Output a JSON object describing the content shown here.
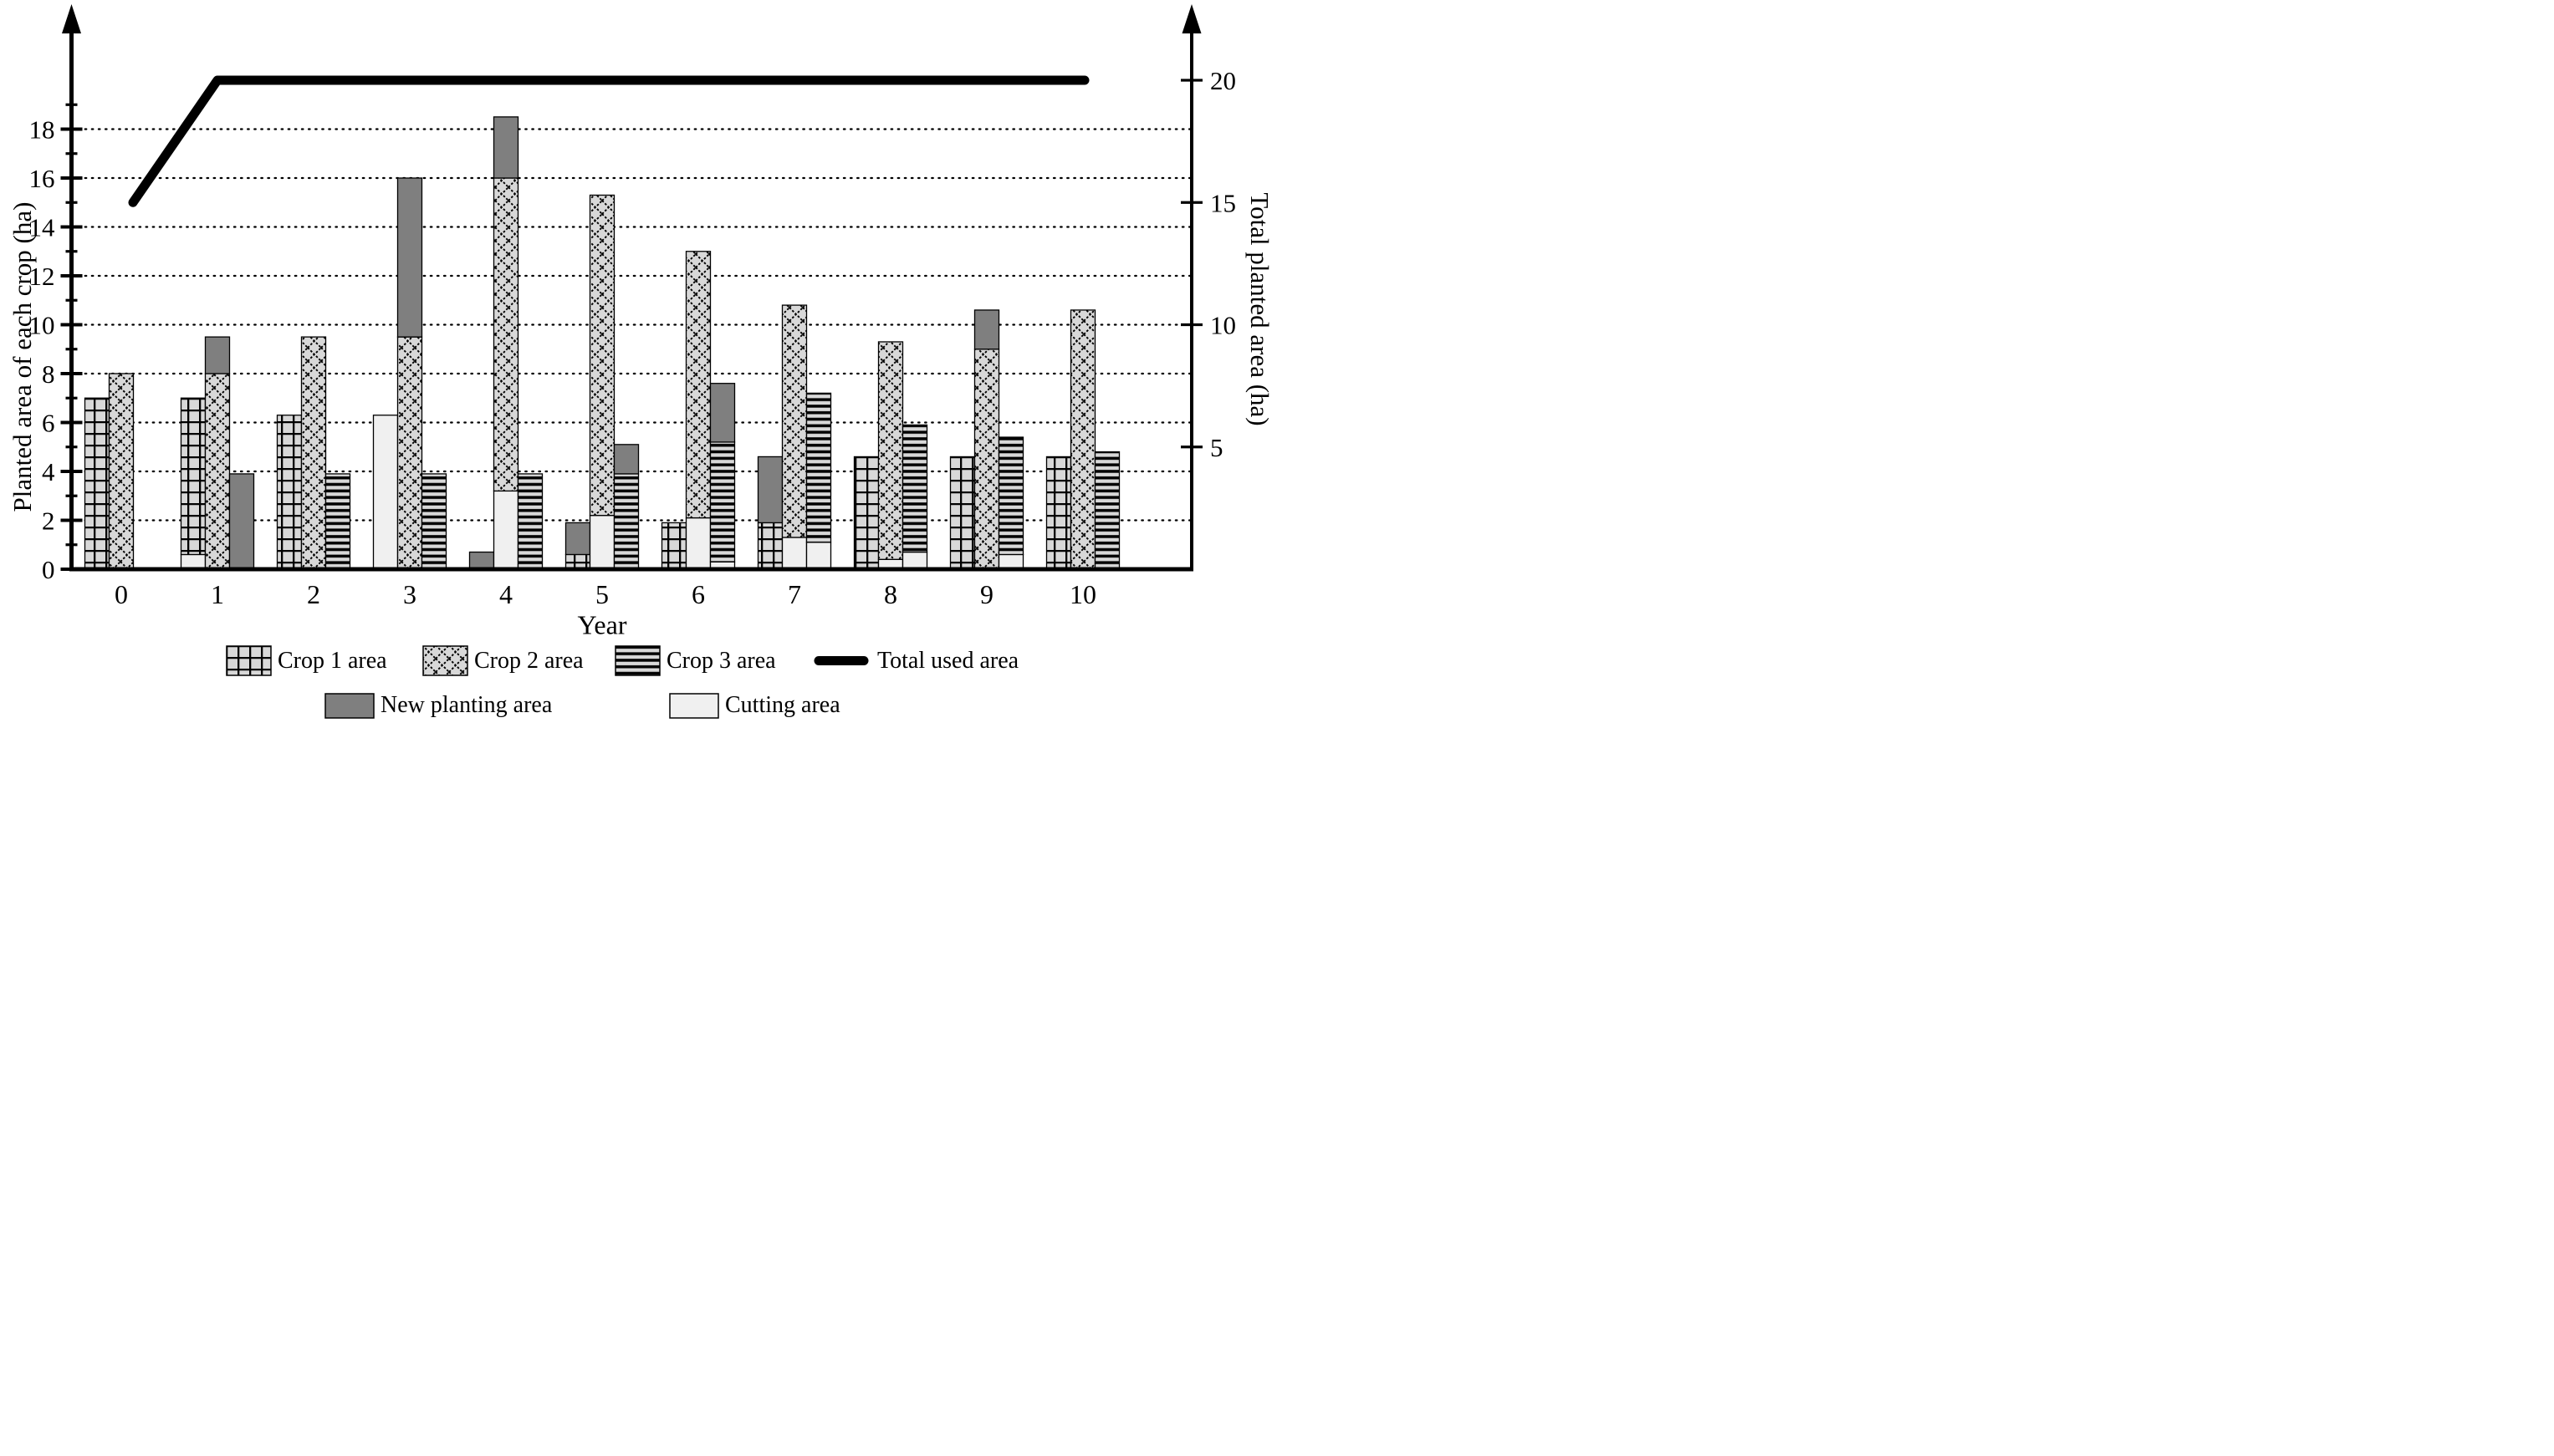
{
  "chart_data": {
    "type": "bar",
    "x_label": "Year",
    "y_left_label": "Planted area of each crop (ha)",
    "y_right_label": "Total planted area (ha)",
    "categories": [
      "0",
      "1",
      "2",
      "3",
      "4",
      "5",
      "6",
      "7",
      "8",
      "9",
      "10"
    ],
    "y_left_ticks": [
      0,
      2,
      4,
      6,
      8,
      10,
      12,
      14,
      16,
      18
    ],
    "y_left_minor_ticks": [
      1,
      3,
      5,
      7,
      9,
      11,
      13,
      15,
      17,
      19
    ],
    "y_right_ticks": [
      5,
      10,
      15,
      20
    ],
    "ylim": [
      0,
      20.7
    ],
    "grid": "dotted horizontal lines at even values 2-18",
    "legend_position": "below chart, two rows",
    "years": [
      {
        "year": "0",
        "slots": [
          [
            {
              "kind": "crop1",
              "value": 7.0
            }
          ],
          [
            {
              "kind": "crop2",
              "value": 8.0
            }
          ],
          []
        ]
      },
      {
        "year": "1",
        "slots": [
          [
            {
              "kind": "cut",
              "value": 0.6
            },
            {
              "kind": "crop1",
              "value": 6.4
            }
          ],
          [
            {
              "kind": "crop2",
              "value": 8.0
            },
            {
              "kind": "new",
              "value": 1.5
            }
          ],
          [
            {
              "kind": "new",
              "value": 3.9
            }
          ]
        ]
      },
      {
        "year": "2",
        "slots": [
          [
            {
              "kind": "crop1",
              "value": 6.3
            }
          ],
          [
            {
              "kind": "crop2",
              "value": 9.5
            }
          ],
          [
            {
              "kind": "crop3",
              "value": 3.9
            }
          ]
        ]
      },
      {
        "year": "3",
        "slots": [
          [
            {
              "kind": "cut",
              "value": 6.3
            }
          ],
          [
            {
              "kind": "crop2",
              "value": 9.5
            },
            {
              "kind": "new",
              "value": 6.5
            }
          ],
          [
            {
              "kind": "crop3",
              "value": 3.9
            }
          ]
        ]
      },
      {
        "year": "4",
        "slots": [
          [
            {
              "kind": "new",
              "value": 0.7
            }
          ],
          [
            {
              "kind": "cut",
              "value": 3.2
            },
            {
              "kind": "crop2",
              "value": 12.8
            },
            {
              "kind": "new",
              "value": 2.5
            }
          ],
          [
            {
              "kind": "crop3",
              "value": 3.9
            }
          ]
        ]
      },
      {
        "year": "5",
        "slots": [
          [
            {
              "kind": "crop1",
              "value": 0.6
            },
            {
              "kind": "new",
              "value": 1.3
            }
          ],
          [
            {
              "kind": "cut",
              "value": 2.2
            },
            {
              "kind": "crop2",
              "value": 13.1
            }
          ],
          [
            {
              "kind": "crop3",
              "value": 3.9
            },
            {
              "kind": "new",
              "value": 1.2
            }
          ]
        ]
      },
      {
        "year": "6",
        "slots": [
          [
            {
              "kind": "crop1",
              "value": 1.9
            }
          ],
          [
            {
              "kind": "cut",
              "value": 2.1
            },
            {
              "kind": "crop2",
              "value": 10.9
            }
          ],
          [
            {
              "kind": "cut",
              "value": 0.3
            },
            {
              "kind": "crop3",
              "value": 4.9
            },
            {
              "kind": "new",
              "value": 2.4
            }
          ]
        ]
      },
      {
        "year": "7",
        "slots": [
          [
            {
              "kind": "crop1",
              "value": 1.9
            },
            {
              "kind": "new",
              "value": 2.7
            }
          ],
          [
            {
              "kind": "cut",
              "value": 1.3
            },
            {
              "kind": "crop2",
              "value": 9.5
            }
          ],
          [
            {
              "kind": "cut",
              "value": 1.1
            },
            {
              "kind": "crop3",
              "value": 6.1
            }
          ]
        ]
      },
      {
        "year": "8",
        "slots": [
          [
            {
              "kind": "crop1",
              "value": 4.6
            }
          ],
          [
            {
              "kind": "cut",
              "value": 0.4
            },
            {
              "kind": "crop2",
              "value": 8.9
            }
          ],
          [
            {
              "kind": "cut",
              "value": 0.7
            },
            {
              "kind": "crop3",
              "value": 5.2
            }
          ]
        ]
      },
      {
        "year": "9",
        "slots": [
          [
            {
              "kind": "crop1",
              "value": 4.6
            }
          ],
          [
            {
              "kind": "crop2",
              "value": 9.0
            },
            {
              "kind": "new",
              "value": 1.6
            }
          ],
          [
            {
              "kind": "cut",
              "value": 0.6
            },
            {
              "kind": "crop3",
              "value": 4.8
            }
          ]
        ]
      },
      {
        "year": "10",
        "slots": [
          [
            {
              "kind": "crop1",
              "value": 4.6
            }
          ],
          [
            {
              "kind": "crop2",
              "value": 10.6
            }
          ],
          [
            {
              "kind": "crop3",
              "value": 4.8
            }
          ]
        ]
      }
    ],
    "total_used_area": {
      "x": [
        0,
        1,
        10
      ],
      "values": [
        15,
        20,
        20
      ]
    },
    "legend": [
      {
        "label": "Crop 1 area",
        "swatch": "grid-pattern"
      },
      {
        "label": "Crop 2 area",
        "swatch": "diamond-pattern"
      },
      {
        "label": "Crop 3 area",
        "swatch": "stripes-pattern"
      },
      {
        "label": "Total used area",
        "swatch": "thick-line"
      },
      {
        "label": "New planting area",
        "swatch": "solid-gray"
      },
      {
        "label": "Cutting area",
        "swatch": "solid-light"
      }
    ]
  },
  "colors": {
    "ink": "#000000",
    "pattern_base": "#d8d8d8",
    "new_planting": "#7f7f7f",
    "cutting": "#f0f0f0",
    "background": "#ffffff"
  }
}
